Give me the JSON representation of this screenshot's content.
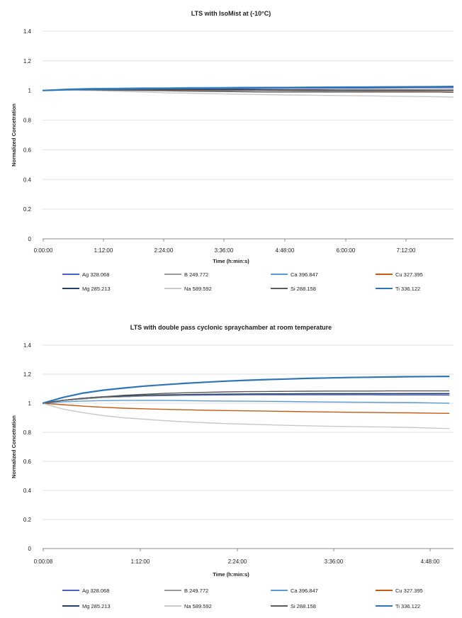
{
  "chart_data": [
    {
      "type": "line",
      "title": "LTS with IsoMist at (-10°C)",
      "xlabel": "Time (h:min:s)",
      "ylabel": "Normalized Concetration",
      "ylim": [
        0,
        1.4
      ],
      "yticks": [
        "0",
        "0.2",
        "0.4",
        "0.6",
        "0.8",
        "1",
        "1.2",
        "1.4"
      ],
      "xticks": [
        "0:00:00",
        "1:12:00",
        "2:24:00",
        "3:36:00",
        "4:48:00",
        "6:00:00",
        "7:12:00"
      ],
      "x_unit": "hours",
      "xlim": [
        0,
        8.3
      ],
      "x": [
        0,
        0.5,
        1,
        1.5,
        2,
        2.5,
        3,
        3.5,
        4,
        4.5,
        5,
        5.5,
        6,
        6.5,
        7,
        7.5,
        8,
        8.3
      ],
      "grid": "horizontal",
      "legend_position": "bottom",
      "series": [
        {
          "name": "Ag 328.068",
          "color": "#4a5fbf",
          "values": [
            1.0,
            1.005,
            1.008,
            1.008,
            1.01,
            1.01,
            1.01,
            1.012,
            1.012,
            1.014,
            1.015,
            1.015,
            1.016,
            1.016,
            1.017,
            1.018,
            1.018,
            1.018
          ]
        },
        {
          "name": "B 249.772",
          "color": "#9a9a9a",
          "values": [
            1.0,
            1.005,
            1.005,
            1.004,
            1.004,
            1.003,
            1.002,
            1.0,
            1.0,
            1.0,
            0.998,
            0.996,
            0.995,
            0.995,
            0.994,
            0.993,
            0.992,
            0.99
          ]
        },
        {
          "name": "Ca 396.847",
          "color": "#5b9bd5",
          "values": [
            1.0,
            1.01,
            1.015,
            1.016,
            1.018,
            1.018,
            1.02,
            1.02,
            1.022,
            1.022,
            1.022,
            1.024,
            1.025,
            1.025,
            1.026,
            1.026,
            1.027,
            1.028
          ]
        },
        {
          "name": "Cu 327.395",
          "color": "#c55a11",
          "values": [
            1.0,
            1.004,
            1.005,
            1.005,
            1.005,
            1.004,
            1.004,
            1.004,
            1.003,
            1.003,
            1.002,
            1.002,
            1.002,
            1.001,
            1.001,
            1.0,
            1.0,
            1.0
          ]
        },
        {
          "name": "Mg 285.213",
          "color": "#243f60",
          "values": [
            1.0,
            1.006,
            1.008,
            1.008,
            1.008,
            1.007,
            1.007,
            1.006,
            1.006,
            1.005,
            1.005,
            1.005,
            1.004,
            1.004,
            1.004,
            1.004,
            1.003,
            1.003
          ]
        },
        {
          "name": "Na 589.592",
          "color": "#c8c8c8",
          "values": [
            1.0,
            1.003,
            1.0,
            0.995,
            0.99,
            0.985,
            0.982,
            0.978,
            0.975,
            0.972,
            0.97,
            0.968,
            0.966,
            0.964,
            0.962,
            0.96,
            0.958,
            0.955
          ]
        },
        {
          "name": "Si 288.158",
          "color": "#5a5a5a",
          "values": [
            1.0,
            1.005,
            1.004,
            1.002,
            1.0,
            0.998,
            0.996,
            0.994,
            0.992,
            0.99,
            0.99,
            0.99,
            0.99,
            0.99,
            0.99,
            0.99,
            0.99,
            0.988
          ]
        },
        {
          "name": "Ti 336.122",
          "color": "#2e75b6",
          "values": [
            1.0,
            1.006,
            1.008,
            1.01,
            1.012,
            1.013,
            1.014,
            1.015,
            1.016,
            1.018,
            1.019,
            1.02,
            1.021,
            1.022,
            1.024,
            1.025,
            1.026,
            1.027
          ]
        }
      ]
    },
    {
      "type": "line",
      "title": "LTS with double pass cyclonic spraychamber at room temperature",
      "xlabel": "Time (h:min:s)",
      "ylabel": "Normalized Concetration",
      "ylim": [
        0,
        1.4
      ],
      "yticks": [
        "0",
        "0.2",
        "0.4",
        "0.6",
        "0.8",
        "1",
        "1.2",
        "1.4"
      ],
      "xticks": [
        "0:00:08",
        "1:12:00",
        "2:24:00",
        "3:36:00",
        "4:48:00"
      ],
      "x_unit": "hours",
      "xlim": [
        0,
        5.05
      ],
      "x": [
        0,
        0.25,
        0.5,
        0.75,
        1,
        1.25,
        1.5,
        1.75,
        2,
        2.25,
        2.5,
        2.75,
        3,
        3.25,
        3.5,
        3.75,
        4,
        4.25,
        4.5,
        4.75,
        5
      ],
      "grid": "horizontal",
      "legend_position": "bottom",
      "series": [
        {
          "name": "Ag 328.068",
          "color": "#4a5fbf",
          "values": [
            1.0,
            1.02,
            1.03,
            1.04,
            1.045,
            1.05,
            1.052,
            1.055,
            1.056,
            1.057,
            1.058,
            1.058,
            1.058,
            1.058,
            1.058,
            1.058,
            1.058,
            1.057,
            1.057,
            1.057,
            1.056
          ]
        },
        {
          "name": "B 249.772",
          "color": "#9a9a9a",
          "values": [
            1.0,
            1.02,
            1.03,
            1.04,
            1.045,
            1.05,
            1.055,
            1.058,
            1.06,
            1.062,
            1.063,
            1.064,
            1.065,
            1.065,
            1.066,
            1.066,
            1.067,
            1.067,
            1.068,
            1.068,
            1.068
          ]
        },
        {
          "name": "Ca 396.847",
          "color": "#5b9bd5",
          "values": [
            1.0,
            1.01,
            1.015,
            1.018,
            1.02,
            1.02,
            1.02,
            1.018,
            1.016,
            1.015,
            1.014,
            1.013,
            1.012,
            1.01,
            1.009,
            1.008,
            1.007,
            1.006,
            1.005,
            1.003,
            1.0
          ]
        },
        {
          "name": "Cu 327.395",
          "color": "#c55a11",
          "values": [
            1.0,
            0.99,
            0.98,
            0.972,
            0.966,
            0.962,
            0.958,
            0.955,
            0.952,
            0.95,
            0.948,
            0.946,
            0.944,
            0.942,
            0.94,
            0.938,
            0.937,
            0.935,
            0.934,
            0.932,
            0.93
          ]
        },
        {
          "name": "Mg 285.213",
          "color": "#243f60",
          "values": [
            1.0,
            1.02,
            1.035,
            1.045,
            1.05,
            1.055,
            1.058,
            1.06,
            1.062,
            1.063,
            1.064,
            1.065,
            1.065,
            1.066,
            1.066,
            1.066,
            1.066,
            1.066,
            1.066,
            1.066,
            1.066
          ]
        },
        {
          "name": "Na 589.592",
          "color": "#c8c8c8",
          "values": [
            1.0,
            0.96,
            0.935,
            0.915,
            0.9,
            0.89,
            0.88,
            0.872,
            0.866,
            0.86,
            0.856,
            0.852,
            0.848,
            0.845,
            0.842,
            0.84,
            0.838,
            0.836,
            0.834,
            0.83,
            0.826
          ]
        },
        {
          "name": "Si 288.158",
          "color": "#5a5a5a",
          "values": [
            1.0,
            1.02,
            1.035,
            1.045,
            1.055,
            1.062,
            1.068,
            1.072,
            1.075,
            1.078,
            1.08,
            1.081,
            1.082,
            1.083,
            1.084,
            1.084,
            1.084,
            1.085,
            1.085,
            1.085,
            1.085
          ]
        },
        {
          "name": "Ti 336.122",
          "color": "#2e75b6",
          "values": [
            1.0,
            1.04,
            1.07,
            1.09,
            1.105,
            1.118,
            1.128,
            1.137,
            1.145,
            1.152,
            1.158,
            1.163,
            1.167,
            1.171,
            1.174,
            1.177,
            1.179,
            1.181,
            1.183,
            1.184,
            1.185
          ]
        }
      ]
    }
  ]
}
